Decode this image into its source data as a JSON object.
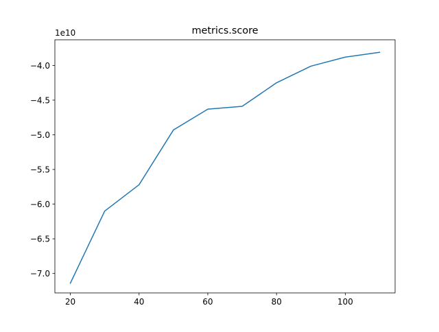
{
  "chart_data": {
    "type": "line",
    "title": "metrics.score",
    "xlabel": "",
    "ylabel": "",
    "offset_label": "1e10",
    "xlim": [
      15.5,
      114.5
    ],
    "ylim": [
      -7.28,
      -3.63
    ],
    "xticks": [
      20,
      40,
      60,
      80,
      100
    ],
    "yticks": [
      -7.0,
      -6.5,
      -6.0,
      -5.5,
      -5.0,
      -4.5,
      -4.0
    ],
    "ytick_labels": [
      "−7.0",
      "−6.5",
      "−6.0",
      "−5.5",
      "−5.0",
      "−4.5",
      "−4.0"
    ],
    "grid": false,
    "series": [
      {
        "color": "#1f77b4",
        "x": [
          20,
          30,
          40,
          50,
          60,
          70,
          80,
          90,
          100,
          110
        ],
        "y": [
          -7.14,
          -6.1,
          -5.72,
          -4.93,
          -4.63,
          -4.59,
          -4.25,
          -4.01,
          -3.88,
          -3.81
        ]
      }
    ]
  }
}
